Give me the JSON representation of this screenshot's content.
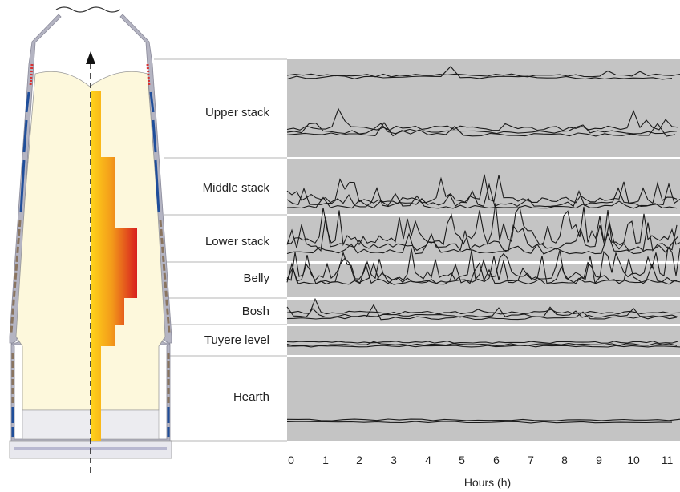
{
  "zones": [
    {
      "id": "upper-stack",
      "label": "Upper stack"
    },
    {
      "id": "middle-stack",
      "label": "Middle stack"
    },
    {
      "id": "lower-stack",
      "label": "Lower stack"
    },
    {
      "id": "belly",
      "label": "Belly"
    },
    {
      "id": "bosh",
      "label": "Bosh"
    },
    {
      "id": "tuyere-level",
      "label": "Tuyere level"
    },
    {
      "id": "hearth",
      "label": "Hearth"
    }
  ],
  "x_axis": {
    "title": "Hours (h)",
    "ticks": [
      "0",
      "1",
      "2",
      "3",
      "4",
      "5",
      "6",
      "7",
      "8",
      "9",
      "10",
      "11"
    ]
  },
  "colors": {
    "panel_background": "#c4c4c4",
    "line_color": "#1a1a1a",
    "burden_fill": "#fdf8dc",
    "shell_color": "#a8a8b8",
    "cooling_blue": "#1f4e9a",
    "refractory_red": "#d83030",
    "gradient_top": "#ffd21a",
    "gradient_bottom": "#d81f1f"
  }
}
